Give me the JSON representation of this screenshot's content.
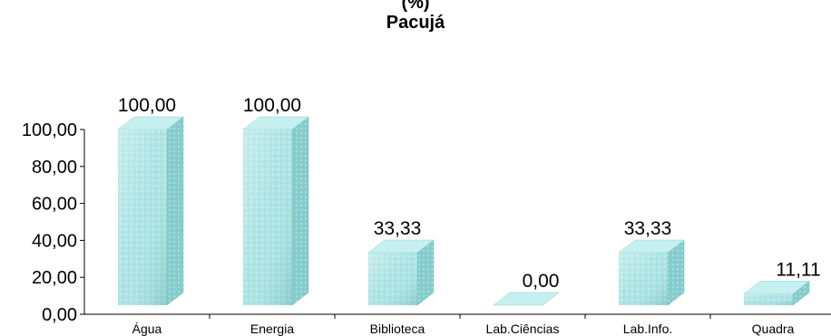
{
  "chart_data": {
    "type": "bar",
    "title": "(%)",
    "subtitle": "Pacujá",
    "categories": [
      "Água",
      "Energia",
      "Biblioteca",
      "Lab.Ciências",
      "Lab.Info.",
      "Quadra"
    ],
    "values": [
      100,
      100,
      33.33,
      0,
      33.33,
      11.11
    ],
    "value_labels": [
      "100,00",
      "100,00",
      "33,33",
      "0,00",
      "33,33",
      "11,11"
    ],
    "y_ticks": [
      "0,00",
      "20,00",
      "40,00",
      "60,00",
      "80,00",
      "100,00"
    ],
    "ylim": [
      0,
      100
    ],
    "bar_style": "3d",
    "colors": {
      "front": "#a9e3e3",
      "side": "#7fc6c6",
      "top": "#c6f0f0",
      "axis": "#000000"
    },
    "grid": false,
    "legend": "none"
  }
}
